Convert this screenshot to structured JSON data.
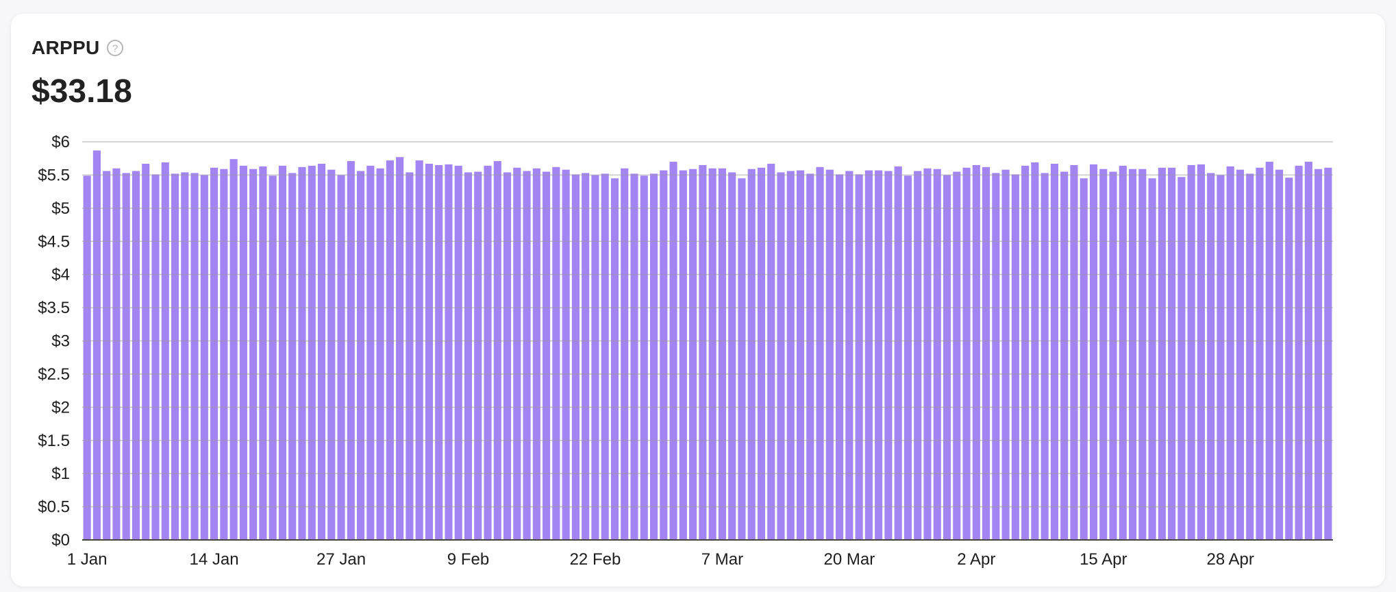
{
  "card": {
    "title": "ARPPU",
    "value": "$33.18"
  },
  "icons": {
    "help": "question-circle-icon"
  },
  "colors": {
    "bar": "#a384f3",
    "grid": "#9a9a9a",
    "axis": "#444444"
  },
  "chart_data": {
    "type": "bar",
    "title": "ARPPU",
    "xlabel": "",
    "ylabel": "",
    "ylim": [
      0,
      6
    ],
    "yticks": [
      "$0",
      "$0.5",
      "$1",
      "$1.5",
      "$2",
      "$2.5",
      "$3",
      "$3.5",
      "$4",
      "$4.5",
      "$5",
      "$5.5",
      "$6"
    ],
    "xtick_labels": [
      "1 Jan",
      "14 Jan",
      "27 Jan",
      "9 Feb",
      "22 Feb",
      "7 Mar",
      "20 Mar",
      "2 Apr",
      "15 Apr",
      "28 Apr"
    ],
    "grid": true,
    "x_start": "1 Jan",
    "values": [
      5.49,
      5.87,
      5.56,
      5.6,
      5.53,
      5.56,
      5.67,
      5.51,
      5.69,
      5.52,
      5.54,
      5.53,
      5.5,
      5.61,
      5.59,
      5.74,
      5.64,
      5.59,
      5.63,
      5.49,
      5.64,
      5.53,
      5.62,
      5.64,
      5.67,
      5.58,
      5.5,
      5.71,
      5.56,
      5.64,
      5.6,
      5.72,
      5.77,
      5.54,
      5.72,
      5.67,
      5.65,
      5.66,
      5.64,
      5.54,
      5.55,
      5.64,
      5.71,
      5.54,
      5.61,
      5.56,
      5.6,
      5.55,
      5.62,
      5.58,
      5.51,
      5.53,
      5.5,
      5.52,
      5.45,
      5.6,
      5.52,
      5.49,
      5.52,
      5.57,
      5.7,
      5.57,
      5.59,
      5.65,
      5.6,
      5.6,
      5.54,
      5.45,
      5.59,
      5.61,
      5.67,
      5.54,
      5.56,
      5.57,
      5.52,
      5.62,
      5.58,
      5.51,
      5.56,
      5.51,
      5.57,
      5.57,
      5.56,
      5.63,
      5.49,
      5.56,
      5.6,
      5.59,
      5.5,
      5.55,
      5.61,
      5.65,
      5.62,
      5.53,
      5.58,
      5.51,
      5.64,
      5.69,
      5.53,
      5.67,
      5.55,
      5.65,
      5.45,
      5.66,
      5.59,
      5.55,
      5.64,
      5.59,
      5.59,
      5.45,
      5.61,
      5.61,
      5.47,
      5.65,
      5.66,
      5.53,
      5.5,
      5.63,
      5.58,
      5.52,
      5.61,
      5.7,
      5.58,
      5.46,
      5.64,
      5.7,
      5.59,
      5.61
    ]
  }
}
